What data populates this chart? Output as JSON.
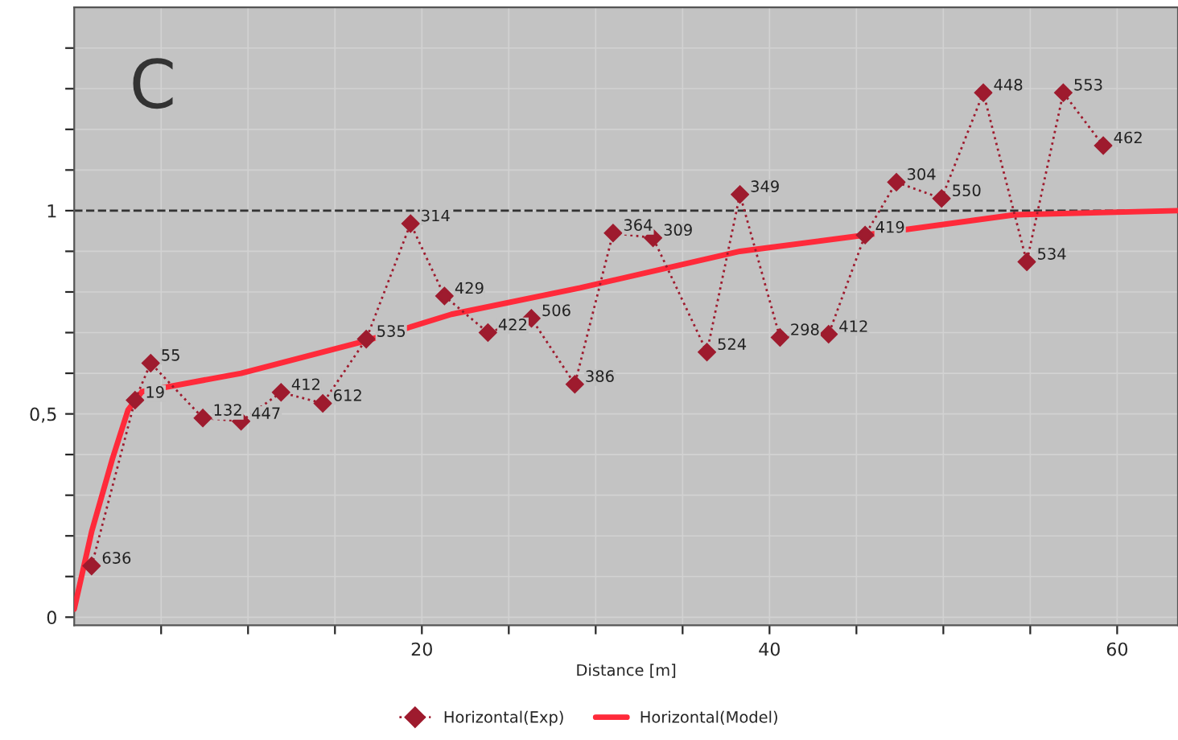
{
  "chart_data": {
    "type": "line",
    "xlabel": "Distance [m]",
    "annotations": [
      "C",
      {
        "text": "636",
        "x": 1.0,
        "y": 0.126
      },
      {
        "text": "19",
        "x": 3.5,
        "y": 0.534
      },
      {
        "text": "55",
        "x": 4.4,
        "y": 0.625
      },
      {
        "text": "132",
        "x": 7.4,
        "y": 0.49
      },
      {
        "text": "447",
        "x": 9.6,
        "y": 0.482
      },
      {
        "text": "412",
        "x": 11.9,
        "y": 0.553
      },
      {
        "text": "612",
        "x": 14.3,
        "y": 0.526
      },
      {
        "text": "535",
        "x": 16.8,
        "y": 0.684
      },
      {
        "text": "314",
        "x": 19.35,
        "y": 0.968
      },
      {
        "text": "429",
        "x": 21.3,
        "y": 0.79
      },
      {
        "text": "422",
        "x": 23.8,
        "y": 0.7
      },
      {
        "text": "506",
        "x": 26.3,
        "y": 0.735
      },
      {
        "text": "386",
        "x": 28.8,
        "y": 0.573
      },
      {
        "text": "364",
        "x": 31.0,
        "y": 0.945
      },
      {
        "text": "309",
        "x": 33.3,
        "y": 0.933
      },
      {
        "text": "524",
        "x": 36.4,
        "y": 0.652
      },
      {
        "text": "349",
        "x": 38.3,
        "y": 1.04
      },
      {
        "text": "298",
        "x": 40.6,
        "y": 0.688
      },
      {
        "text": "412",
        "x": 43.4,
        "y": 0.696
      },
      {
        "text": "419",
        "x": 45.5,
        "y": 0.94
      },
      {
        "text": "304",
        "x": 47.3,
        "y": 1.07
      },
      {
        "text": "550",
        "x": 49.9,
        "y": 1.03
      },
      {
        "text": "448",
        "x": 52.3,
        "y": 1.29
      },
      {
        "text": "534",
        "x": 54.8,
        "y": 0.874
      },
      {
        "text": "553",
        "x": 56.9,
        "y": 1.29
      },
      {
        "text": "462",
        "x": 59.2,
        "y": 1.16
      }
    ],
    "xlim": [
      0,
      63.5
    ],
    "ylim": [
      -0.02,
      1.5
    ],
    "xticks": [
      {
        "value": 5,
        "label": null
      },
      {
        "value": 10,
        "label": null
      },
      {
        "value": 15,
        "label": null
      },
      20,
      {
        "value": 25,
        "label": null
      },
      {
        "value": 30,
        "label": null
      },
      {
        "value": 35,
        "label": null
      },
      40,
      {
        "value": 45,
        "label": null
      },
      {
        "value": 50,
        "label": null
      },
      {
        "value": 55,
        "label": null
      },
      60
    ],
    "yticks": [
      0,
      {
        "value": 0.1,
        "label": null
      },
      {
        "value": 0.2,
        "label": null
      },
      {
        "value": 0.3,
        "label": null
      },
      {
        "value": 0.4,
        "label": null
      },
      {
        "value": 0.5,
        "label": "0,5"
      },
      {
        "value": 0.6,
        "label": null
      },
      {
        "value": 0.7,
        "label": null
      },
      {
        "value": 0.8,
        "label": null
      },
      {
        "value": 0.9,
        "label": null
      },
      1,
      {
        "value": 1.1,
        "label": null
      },
      {
        "value": 1.2,
        "label": null
      },
      {
        "value": 1.3,
        "label": null
      },
      {
        "value": 1.4,
        "label": null
      }
    ],
    "grid": true,
    "legend": "bottom",
    "ref_lines": [
      {
        "axis": "y",
        "value": 1,
        "color": "#333333",
        "line_style": "dashed"
      }
    ],
    "series": [
      {
        "name": "Horizontal(Exp)",
        "color": "#9e1b2e",
        "marker": "diamond",
        "line_style": "dotted",
        "x": [
          1.0,
          3.5,
          4.4,
          7.4,
          9.6,
          11.9,
          14.3,
          16.8,
          19.35,
          21.3,
          23.8,
          26.3,
          28.8,
          31.0,
          33.3,
          36.4,
          38.3,
          40.6,
          43.4,
          45.5,
          47.3,
          49.9,
          52.3,
          54.8,
          56.9,
          59.2
        ],
        "values": [
          0.126,
          0.534,
          0.625,
          0.49,
          0.482,
          0.553,
          0.526,
          0.684,
          0.968,
          0.79,
          0.7,
          0.735,
          0.573,
          0.945,
          0.933,
          0.652,
          1.04,
          0.688,
          0.696,
          0.94,
          1.07,
          1.03,
          1.29,
          0.874,
          1.29,
          1.16
        ]
      },
      {
        "name": "Horizontal(Model)",
        "color": "#ff2a3a",
        "marker": "none",
        "line_style": "solid",
        "x": [
          0,
          1,
          2.2,
          3.1,
          3.9,
          9.6,
          16.8,
          21.7,
          29.1,
          38.3,
          45.5,
          54.1,
          63.5
        ],
        "values": [
          0.02,
          0.21,
          0.39,
          0.51,
          0.555,
          0.6,
          0.68,
          0.745,
          0.81,
          0.9,
          0.94,
          0.99,
          1.0
        ]
      }
    ]
  }
}
